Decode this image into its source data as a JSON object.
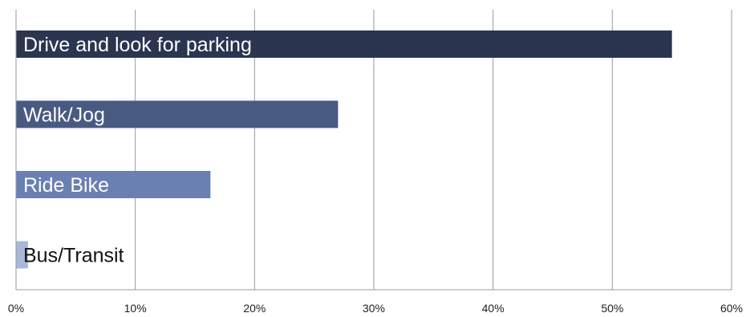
{
  "chart_data": {
    "type": "bar",
    "orientation": "horizontal",
    "categories": [
      "Drive and look for parking",
      "Walk/Jog",
      "Ride Bike",
      "Bus/Transit"
    ],
    "values": [
      55,
      27,
      16.3,
      1
    ],
    "xlim": [
      0,
      60
    ],
    "xticks": [
      0,
      10,
      20,
      30,
      40,
      50,
      60
    ],
    "x_tick_labels": [
      "0%",
      "10%",
      "20%",
      "30%",
      "40%",
      "50%",
      "60%"
    ],
    "grid": "vertical",
    "legend": "none",
    "title": "",
    "xlabel": "",
    "ylabel": "",
    "colors": {
      "bars": [
        "#2b3550",
        "#495a82",
        "#6a7fb2",
        "#a9b7d9"
      ],
      "labels": [
        "#ffffff",
        "#ffffff",
        "#ffffff",
        "#111111"
      ],
      "grid": "#9a9a9a",
      "axis": "#9a9a9a"
    }
  }
}
